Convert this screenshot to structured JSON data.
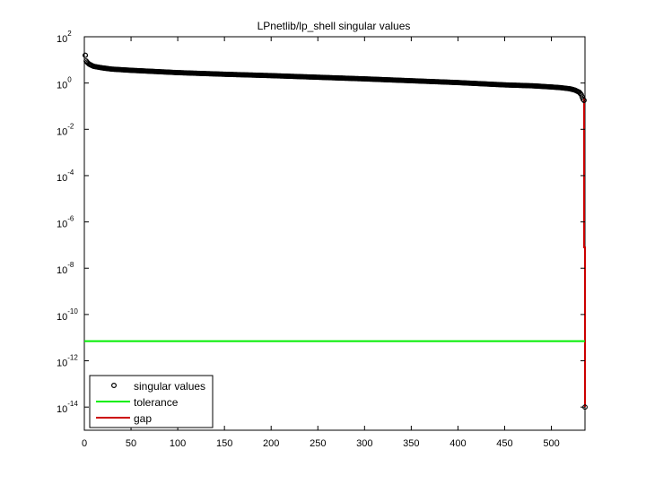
{
  "chart_data": {
    "type": "line",
    "title": "LPnetlib/lp_shell singular values",
    "xlabel": "",
    "ylabel": "",
    "xlim": [
      0,
      536
    ],
    "ylim_log10": [
      -15,
      2
    ],
    "y_scale": "log",
    "grid": false,
    "legend_position": "bottom-left",
    "x_ticks": [
      "0",
      "50",
      "100",
      "150",
      "200",
      "250",
      "300",
      "350",
      "400",
      "450",
      "500"
    ],
    "x_tick_values": [
      0,
      50,
      100,
      150,
      200,
      250,
      300,
      350,
      400,
      450,
      500
    ],
    "y_ticks": [
      {
        "base": "10",
        "exp": "2",
        "value": 2
      },
      {
        "base": "10",
        "exp": "0",
        "value": 0
      },
      {
        "base": "10",
        "exp": "-2",
        "value": -2
      },
      {
        "base": "10",
        "exp": "-4",
        "value": -4
      },
      {
        "base": "10",
        "exp": "-6",
        "value": -6
      },
      {
        "base": "10",
        "exp": "-8",
        "value": -8
      },
      {
        "base": "10",
        "exp": "-10",
        "value": -10
      },
      {
        "base": "10",
        "exp": "-12",
        "value": -12
      },
      {
        "base": "10",
        "exp": "-14",
        "value": -14
      }
    ],
    "series": [
      {
        "name": "singular values",
        "style": "markers",
        "color": "#000000",
        "x": [
          1,
          2,
          3,
          5,
          10,
          20,
          30,
          50,
          100,
          150,
          200,
          250,
          300,
          350,
          400,
          450,
          480,
          500,
          510,
          520,
          525,
          530,
          532,
          533,
          534,
          535,
          536
        ],
        "log10_y": [
          1.2,
          0.95,
          0.9,
          0.82,
          0.72,
          0.65,
          0.6,
          0.55,
          0.45,
          0.38,
          0.32,
          0.25,
          0.18,
          0.1,
          0.02,
          -0.08,
          -0.12,
          -0.17,
          -0.2,
          -0.25,
          -0.3,
          -0.4,
          -0.5,
          -0.6,
          -0.7,
          -0.75,
          -14.0
        ]
      },
      {
        "name": "tolerance",
        "style": "line",
        "color": "#00ee00",
        "x": [
          0,
          536
        ],
        "log10_y": [
          -11.15,
          -11.15
        ]
      },
      {
        "name": "gap",
        "style": "line",
        "color": "#cc0000",
        "x": [
          535,
          535,
          536,
          536
        ],
        "log10_y": [
          -0.6,
          -7.1,
          -7.1,
          -14.0
        ]
      }
    ],
    "legend": [
      {
        "label": "singular values",
        "kind": "marker",
        "color": "#000000"
      },
      {
        "label": "tolerance",
        "kind": "line",
        "color": "#00ee00"
      },
      {
        "label": "gap",
        "kind": "line",
        "color": "#cc0000"
      }
    ]
  }
}
